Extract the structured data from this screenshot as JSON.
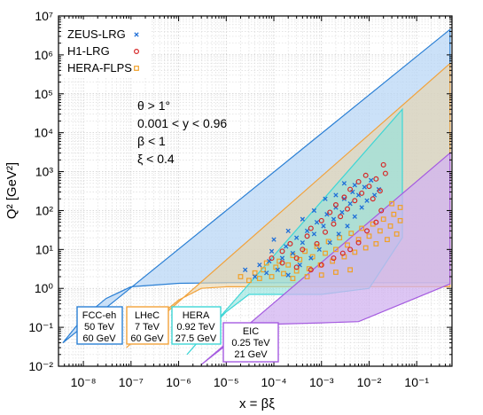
{
  "chart_data": {
    "type": "scatter",
    "title": "",
    "xlabel": "x = βξ",
    "ylabel": "Q² [GeV²]",
    "xscale": "log",
    "yscale": "log",
    "xlim": [
      3e-09,
      0.55
    ],
    "ylim": [
      0.01,
      10000000.0
    ],
    "grid": true,
    "legend_position": "top-left",
    "x_ticks": [
      {
        "value": 1e-08,
        "label": "10⁻⁸"
      },
      {
        "value": 1e-07,
        "label": "10⁻⁷"
      },
      {
        "value": 1e-06,
        "label": "10⁻⁶"
      },
      {
        "value": 1e-05,
        "label": "10⁻⁵"
      },
      {
        "value": 0.0001,
        "label": "10⁻⁴"
      },
      {
        "value": 0.001,
        "label": "10⁻³"
      },
      {
        "value": 0.01,
        "label": "10⁻²"
      },
      {
        "value": 0.1,
        "label": "10⁻¹"
      }
    ],
    "y_ticks": [
      {
        "value": 0.01,
        "label": "10⁻²"
      },
      {
        "value": 0.1,
        "label": "10⁻¹"
      },
      {
        "value": 1.0,
        "label": "10⁰"
      },
      {
        "value": 10.0,
        "label": "10¹"
      },
      {
        "value": 100.0,
        "label": "10²"
      },
      {
        "value": 1000.0,
        "label": "10³"
      },
      {
        "value": 10000.0,
        "label": "10⁴"
      },
      {
        "value": 100000.0,
        "label": "10⁵"
      },
      {
        "value": 1000000.0,
        "label": "10⁶"
      },
      {
        "value": 10000000.0,
        "label": "10⁷"
      }
    ],
    "annotations": [
      "θ > 1°",
      "0.001 < y < 0.96",
      "β < 1",
      "ξ < 0.4"
    ],
    "regions": [
      {
        "key": "fcc",
        "label_lines": [
          "FCC-eh",
          "50 TeV",
          "60 GeV"
        ],
        "edge": "#2a7fd4",
        "fill": "#b9d7f5",
        "opacity": 0.75,
        "boundary": [
          [
            3.7e-09,
            0.04
          ],
          [
            1e-08,
            0.18
          ],
          [
            3e-08,
            0.55
          ],
          [
            1e-07,
            1.1
          ],
          [
            1e-06,
            1.35
          ],
          [
            1e-05,
            1.4
          ],
          [
            0.1,
            1.4
          ],
          [
            0.5,
            1.4
          ],
          [
            0.5,
            4500000.0
          ],
          [
            3.7e-09,
            0.04
          ]
        ]
      },
      {
        "key": "lhec",
        "label_lines": [
          "LHeC",
          "7 TeV",
          "60 GeV"
        ],
        "edge": "#f2a23a",
        "fill": "#e9d3a8",
        "opacity": 0.6,
        "boundary": [
          [
            8e-08,
            0.03
          ],
          [
            2e-07,
            0.08
          ],
          [
            5e-07,
            0.25
          ],
          [
            1e-06,
            0.5
          ],
          [
            3e-06,
            1.0
          ],
          [
            1e-05,
            1.1
          ],
          [
            0.0001,
            1.1
          ],
          [
            0.001,
            1.1
          ],
          [
            0.1,
            1.1
          ],
          [
            0.5,
            1.1
          ],
          [
            0.5,
            600000.0
          ],
          [
            8e-08,
            0.03
          ]
        ]
      },
      {
        "key": "hera",
        "label_lines": [
          "HERA",
          "0.92 TeV",
          "27.5 GeV"
        ],
        "edge": "#3ed6d6",
        "fill": "#8fe3dc",
        "opacity": 0.6,
        "boundary": [
          [
            1.5e-06,
            0.02
          ],
          [
            4e-06,
            0.08
          ],
          [
            1e-05,
            0.25
          ],
          [
            3e-05,
            0.7
          ],
          [
            0.0001,
            0.7
          ],
          [
            0.001,
            0.7
          ],
          [
            0.01,
            1.0
          ],
          [
            0.05,
            20
          ],
          [
            0.05,
            40000.0
          ],
          [
            1.5e-06,
            0.02
          ]
        ]
      },
      {
        "key": "eic",
        "label_lines": [
          "EIC",
          "0.25 TeV",
          "21 GeV"
        ],
        "edge": "#a55be0",
        "fill": "#d2b3f0",
        "opacity": 0.75,
        "boundary": [
          [
            3e-06,
            0.011
          ],
          [
            1e-05,
            0.035
          ],
          [
            3e-05,
            0.08
          ],
          [
            0.0001,
            0.12
          ],
          [
            0.001,
            0.13
          ],
          [
            0.006,
            0.14
          ],
          [
            0.5,
            1.3
          ],
          [
            0.5,
            3000
          ],
          [
            3e-06,
            0.011
          ]
        ]
      }
    ],
    "series": [
      {
        "name": "ZEUS-LRG",
        "marker": "x",
        "color": "#1f6fd8",
        "points": [
          [
            2.5e-05,
            3
          ],
          [
            4e-05,
            2
          ],
          [
            5e-05,
            4
          ],
          [
            7e-05,
            2.5
          ],
          [
            8e-05,
            5
          ],
          [
            9e-05,
            9
          ],
          [
            0.00012,
            3
          ],
          [
            0.00015,
            6
          ],
          [
            0.00018,
            12
          ],
          [
            0.0002,
            2.2
          ],
          [
            0.00025,
            8
          ],
          [
            0.0003,
            20
          ],
          [
            0.00035,
            4
          ],
          [
            0.0004,
            15
          ],
          [
            0.0005,
            30
          ],
          [
            0.0006,
            6
          ],
          [
            0.0007,
            25
          ],
          [
            0.0008,
            50
          ],
          [
            0.0009,
            10
          ],
          [
            0.0011,
            40
          ],
          [
            0.0013,
            80
          ],
          [
            0.0015,
            15
          ],
          [
            0.0018,
            60
          ],
          [
            0.002,
            120
          ],
          [
            0.0023,
            25
          ],
          [
            0.0027,
            90
          ],
          [
            0.003,
            200
          ],
          [
            0.0035,
            40
          ],
          [
            0.004,
            150
          ],
          [
            0.0045,
            300
          ],
          [
            0.005,
            70
          ],
          [
            0.006,
            250
          ],
          [
            0.007,
            120
          ],
          [
            0.008,
            400
          ],
          [
            0.009,
            180
          ],
          [
            0.011,
            600
          ],
          [
            0.013,
            250
          ],
          [
            0.016,
            350
          ],
          [
            0.005,
            450
          ],
          [
            0.003,
            500
          ],
          [
            0.002,
            250
          ],
          [
            0.0012,
            200
          ],
          [
            0.0007,
            100
          ],
          [
            0.0004,
            60
          ],
          [
            0.0002,
            30
          ],
          [
            0.0001,
            18
          ]
        ]
      },
      {
        "name": "H1-LRG",
        "marker": "circle",
        "color": "#d62828",
        "points": [
          [
            0.00015,
            9
          ],
          [
            0.00022,
            14
          ],
          [
            0.0003,
            6
          ],
          [
            0.0004,
            10
          ],
          [
            0.0005,
            22
          ],
          [
            0.0006,
            35
          ],
          [
            0.0008,
            14
          ],
          [
            0.001,
            55
          ],
          [
            0.0012,
            28
          ],
          [
            0.0015,
            90
          ],
          [
            0.0018,
            45
          ],
          [
            0.002,
            140
          ],
          [
            0.0025,
            70
          ],
          [
            0.003,
            220
          ],
          [
            0.0035,
            110
          ],
          [
            0.004,
            350
          ],
          [
            0.005,
            180
          ],
          [
            0.006,
            550
          ],
          [
            0.007,
            280
          ],
          [
            0.0085,
            800
          ],
          [
            0.01,
            420
          ],
          [
            0.012,
            200
          ],
          [
            0.014,
            650
          ],
          [
            0.017,
            320
          ],
          [
            0.02,
            1500
          ],
          [
            0.022,
            900
          ],
          [
            0.018,
            100
          ],
          [
            0.014,
            50
          ],
          [
            0.009,
            30
          ],
          [
            0.006,
            15
          ],
          [
            0.004,
            10
          ],
          [
            0.0028,
            8
          ],
          [
            0.0018,
            6
          ],
          [
            0.001,
            4
          ],
          [
            0.0006,
            3
          ],
          [
            0.0003,
            3.5
          ],
          [
            0.00015,
            4.5
          ],
          [
            9e-05,
            6
          ]
        ]
      },
      {
        "name": "HERA-FLPS",
        "marker": "square",
        "color": "#f0a028",
        "points": [
          [
            2e-05,
            2
          ],
          [
            3e-05,
            1.6
          ],
          [
            4e-05,
            2.5
          ],
          [
            5e-05,
            1.8
          ],
          [
            6e-05,
            3
          ],
          [
            7e-05,
            4.5
          ],
          [
            9e-05,
            2
          ],
          [
            0.00011,
            3.5
          ],
          [
            0.00013,
            5
          ],
          [
            0.00016,
            2.4
          ],
          [
            0.0002,
            4
          ],
          [
            0.00025,
            7
          ],
          [
            0.0003,
            2.8
          ],
          [
            0.00035,
            5.5
          ],
          [
            0.00045,
            9
          ],
          [
            0.00055,
            3.2
          ],
          [
            0.00065,
            6.5
          ],
          [
            0.0008,
            12
          ],
          [
            0.00095,
            4
          ],
          [
            0.0012,
            8
          ],
          [
            0.0014,
            16
          ],
          [
            0.0017,
            5
          ],
          [
            0.002,
            10
          ],
          [
            0.0024,
            20
          ],
          [
            0.003,
            6.5
          ],
          [
            0.0035,
            13
          ],
          [
            0.0042,
            26
          ],
          [
            0.005,
            8.5
          ],
          [
            0.006,
            18
          ],
          [
            0.007,
            35
          ],
          [
            0.0085,
            11
          ],
          [
            0.01,
            22
          ],
          [
            0.012,
            45
          ],
          [
            0.014,
            14
          ],
          [
            0.017,
            30
          ],
          [
            0.02,
            60
          ],
          [
            0.024,
            18
          ],
          [
            0.028,
            40
          ],
          [
            0.033,
            80
          ],
          [
            0.038,
            25
          ],
          [
            0.045,
            55
          ],
          [
            0.045,
            120
          ],
          [
            0.03,
            150
          ],
          [
            0.004,
            3
          ],
          [
            0.002,
            2.6
          ],
          [
            0.001,
            2.2
          ],
          [
            0.0005,
            2
          ],
          [
            0.00025,
            1.8
          ]
        ]
      }
    ]
  }
}
